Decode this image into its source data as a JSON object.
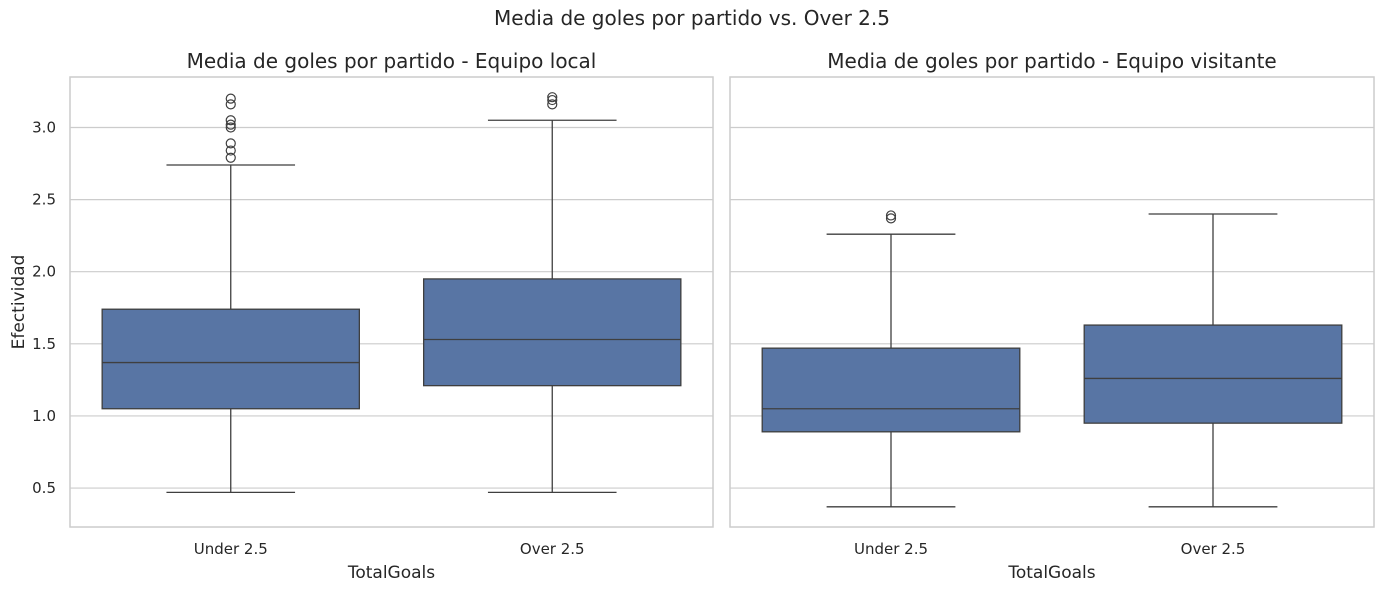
{
  "suptitle": "Media de goles por partido vs. Over 2.5",
  "colors": {
    "box_fill": "#5875a4",
    "line": "#3f3f3f",
    "grid": "#cccccc",
    "axes_edge": "#cccccc",
    "text": "#262626"
  },
  "chart_data": [
    {
      "type": "box",
      "title": "Media de goles por partido - Equipo local",
      "xlabel": "TotalGoals",
      "ylabel": "Efectividad",
      "categories": [
        "Under 2.5",
        "Over 2.5"
      ],
      "ylim": [
        0.23,
        3.35
      ],
      "yticks": [
        0.5,
        1.0,
        1.5,
        2.0,
        2.5,
        3.0
      ],
      "ytick_labels": [
        "0.5",
        "1.0",
        "1.5",
        "2.0",
        "2.5",
        "3.0"
      ],
      "grid": true,
      "boxes": [
        {
          "category": "Under 2.5",
          "whisker_low": 0.47,
          "q1": 1.05,
          "median": 1.37,
          "q3": 1.74,
          "whisker_high": 2.74,
          "outliers": [
            2.79,
            2.84,
            2.89,
            3.0,
            3.02,
            3.05,
            3.16,
            3.2
          ]
        },
        {
          "category": "Over 2.5",
          "whisker_low": 0.47,
          "q1": 1.21,
          "median": 1.53,
          "q3": 1.95,
          "whisker_high": 3.05,
          "outliers": [
            3.16,
            3.19,
            3.21
          ]
        }
      ]
    },
    {
      "type": "box",
      "title": "Media de goles por partido - Equipo visitante",
      "xlabel": "TotalGoals",
      "ylabel": "",
      "categories": [
        "Under 2.5",
        "Over 2.5"
      ],
      "ylim": [
        0.23,
        3.35
      ],
      "yticks": [
        0.5,
        1.0,
        1.5,
        2.0,
        2.5,
        3.0
      ],
      "ytick_labels": [],
      "grid": true,
      "boxes": [
        {
          "category": "Under 2.5",
          "whisker_low": 0.37,
          "q1": 0.89,
          "median": 1.05,
          "q3": 1.47,
          "whisker_high": 2.26,
          "outliers": [
            2.37,
            2.39
          ]
        },
        {
          "category": "Over 2.5",
          "whisker_low": 0.37,
          "q1": 0.95,
          "median": 1.26,
          "q3": 1.63,
          "whisker_high": 2.4,
          "outliers": []
        }
      ]
    }
  ]
}
